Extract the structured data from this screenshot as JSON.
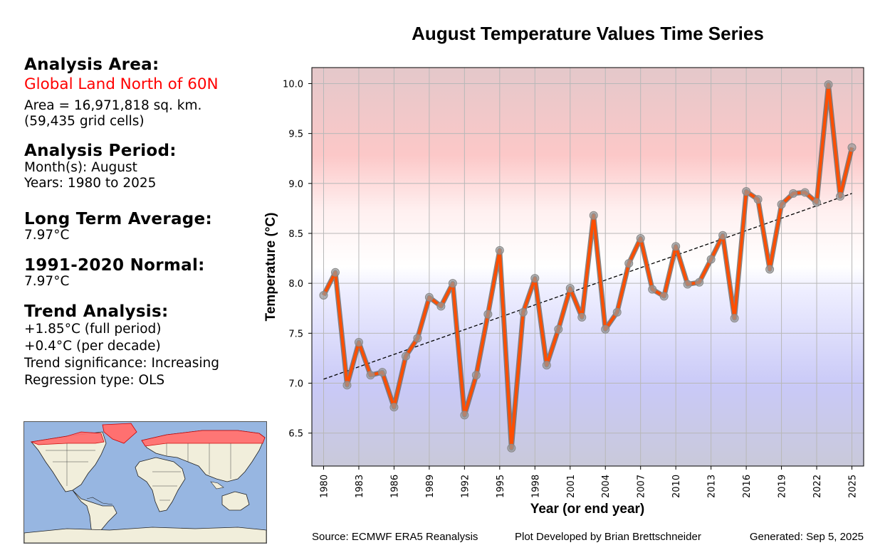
{
  "panel": {
    "area_heading": "Analysis Area:",
    "area_name": "Global Land North of 60N",
    "area_size": "Area = 16,971,818 sq. km.",
    "grid_cells": "(59,435 grid cells)",
    "period_heading": "Analysis Period:",
    "months": "Month(s): August",
    "years": "Years: 1980 to 2025",
    "lta_heading": "Long Term Average:",
    "lta_value": "7.97°C",
    "normal_heading": "1991-2020 Normal:",
    "normal_value": "7.97°C",
    "trend_heading": "Trend Analysis:",
    "trend_full": "+1.85°C (full period)",
    "trend_decade": "+0.4°C (per decade)",
    "trend_significance": "Trend significance: Increasing",
    "regression_type": "Regression type: OLS"
  },
  "map": {
    "highlight_region": "Global Land North of 60N",
    "ocean_color": "#97b6e1",
    "land_color": "#f1eedb",
    "highlight_color": "#ff6f6f"
  },
  "footer": {
    "source": "Source: ECMWF ERA5 Reanalysis",
    "credit": "Plot Developed by Brian Brettschneider",
    "generated": "Generated: Sep 5, 2025"
  },
  "chart_data": {
    "type": "line",
    "title": "August Temperature Values Time Series",
    "xlabel": "Year (or end year)",
    "ylabel": "Temperature (°C)",
    "xlim": [
      1979,
      2026
    ],
    "ylim": [
      6.17,
      10.16
    ],
    "grid": true,
    "xticks": [
      1980,
      1983,
      1986,
      1989,
      1992,
      1995,
      1998,
      2001,
      2004,
      2007,
      2010,
      2013,
      2016,
      2019,
      2022,
      2025
    ],
    "yticks": [
      6.5,
      7.0,
      7.5,
      8.0,
      8.5,
      9.0,
      9.5,
      10.0
    ],
    "ytick_labels": [
      "6.5",
      "7.0",
      "7.5",
      "8.0",
      "8.5",
      "9.0",
      "9.5",
      "10.0"
    ],
    "background": "vertical gradient: blue below ~8.0°C, white near 8.2°C, red above",
    "x": [
      1980,
      1981,
      1982,
      1983,
      1984,
      1985,
      1986,
      1987,
      1988,
      1989,
      1990,
      1991,
      1992,
      1993,
      1994,
      1995,
      1996,
      1997,
      1998,
      1999,
      2000,
      2001,
      2002,
      2003,
      2004,
      2005,
      2006,
      2007,
      2008,
      2009,
      2010,
      2011,
      2012,
      2013,
      2014,
      2015,
      2016,
      2017,
      2018,
      2019,
      2020,
      2021,
      2022,
      2023,
      2024,
      2025
    ],
    "series": [
      {
        "name": "August Temperature",
        "color": "#ff4e00",
        "marker_color": "#999999",
        "values": [
          7.88,
          8.11,
          6.98,
          7.41,
          7.08,
          7.11,
          6.76,
          7.27,
          7.45,
          7.86,
          7.77,
          8.0,
          6.68,
          7.08,
          7.69,
          8.33,
          6.35,
          7.71,
          8.05,
          7.18,
          7.54,
          7.95,
          7.66,
          8.68,
          7.54,
          7.71,
          8.2,
          8.45,
          7.94,
          7.87,
          8.37,
          7.99,
          8.01,
          8.24,
          8.48,
          7.65,
          8.92,
          8.84,
          8.14,
          8.79,
          8.9,
          8.91,
          8.81,
          9.99,
          8.87,
          9.36
        ]
      },
      {
        "name": "OLS Trend",
        "style": "dashed",
        "color": "#000000",
        "x": [
          1980,
          2025
        ],
        "values": [
          7.04,
          8.9
        ]
      }
    ]
  }
}
